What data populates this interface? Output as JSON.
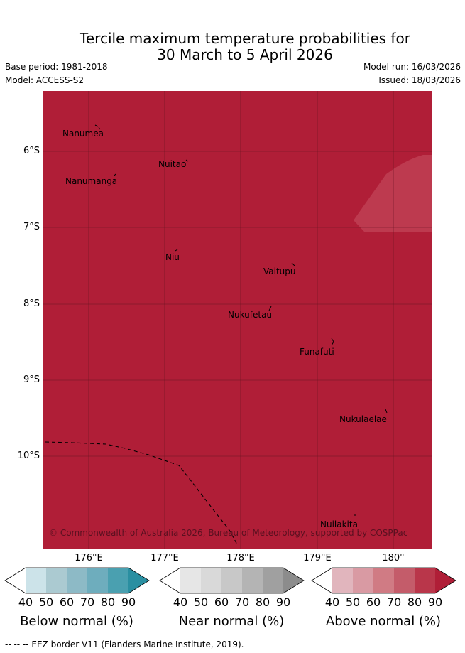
{
  "title": {
    "line1": "Tercile maximum temperature probabilities for",
    "line2": "30 March to 5 April 2026"
  },
  "meta": {
    "base_period": "Base period: 1981-2018",
    "model": "Model: ACCESS-S2",
    "model_run": "Model run: 16/03/2026",
    "issued": "Issued: 18/03/2026"
  },
  "map": {
    "fill_color": "#b01e37",
    "lighter_patch_color": "#bd3a4f",
    "gridline_color": "#6a1522",
    "lat_labels": [
      "6°S",
      "7°S",
      "8°S",
      "9°S",
      "10°S"
    ],
    "lon_labels": [
      "176°E",
      "177°E",
      "178°E",
      "179°E",
      "180°"
    ],
    "places": [
      "Nanumea",
      "Nuitao",
      "Nanumanga",
      "Niu",
      "Vaitupu",
      "Nukufetau",
      "Funafuti",
      "Nukulaelae",
      "Nuilakita"
    ],
    "copyright": "© Commonwealth of Australia 2026, Bureau of Meteorology, supported by COSPPac"
  },
  "legends": [
    {
      "label": "Below normal (%)",
      "ticks": [
        "40",
        "50",
        "60",
        "70",
        "80",
        "90"
      ],
      "colors": [
        "#ffffff",
        "#cce3e9",
        "#abcad1",
        "#8dbac6",
        "#6eadbd",
        "#4aa0b0",
        "#2a8fa1"
      ]
    },
    {
      "label": "Near normal (%)",
      "ticks": [
        "40",
        "50",
        "60",
        "70",
        "80",
        "90"
      ],
      "colors": [
        "#ffffff",
        "#e6e6e6",
        "#d9d9d9",
        "#c8c8c8",
        "#b4b4b4",
        "#a0a0a0",
        "#8c8c8c"
      ]
    },
    {
      "label": "Above normal (%)",
      "ticks": [
        "40",
        "50",
        "60",
        "70",
        "80",
        "90"
      ],
      "colors": [
        "#ffffff",
        "#e1b5bd",
        "#d99aa3",
        "#d07b84",
        "#c45c6a",
        "#b9364a",
        "#b01e37"
      ]
    }
  ],
  "footnote": "--  --  -- EEZ border V11 (Flanders Marine Institute, 2019)."
}
